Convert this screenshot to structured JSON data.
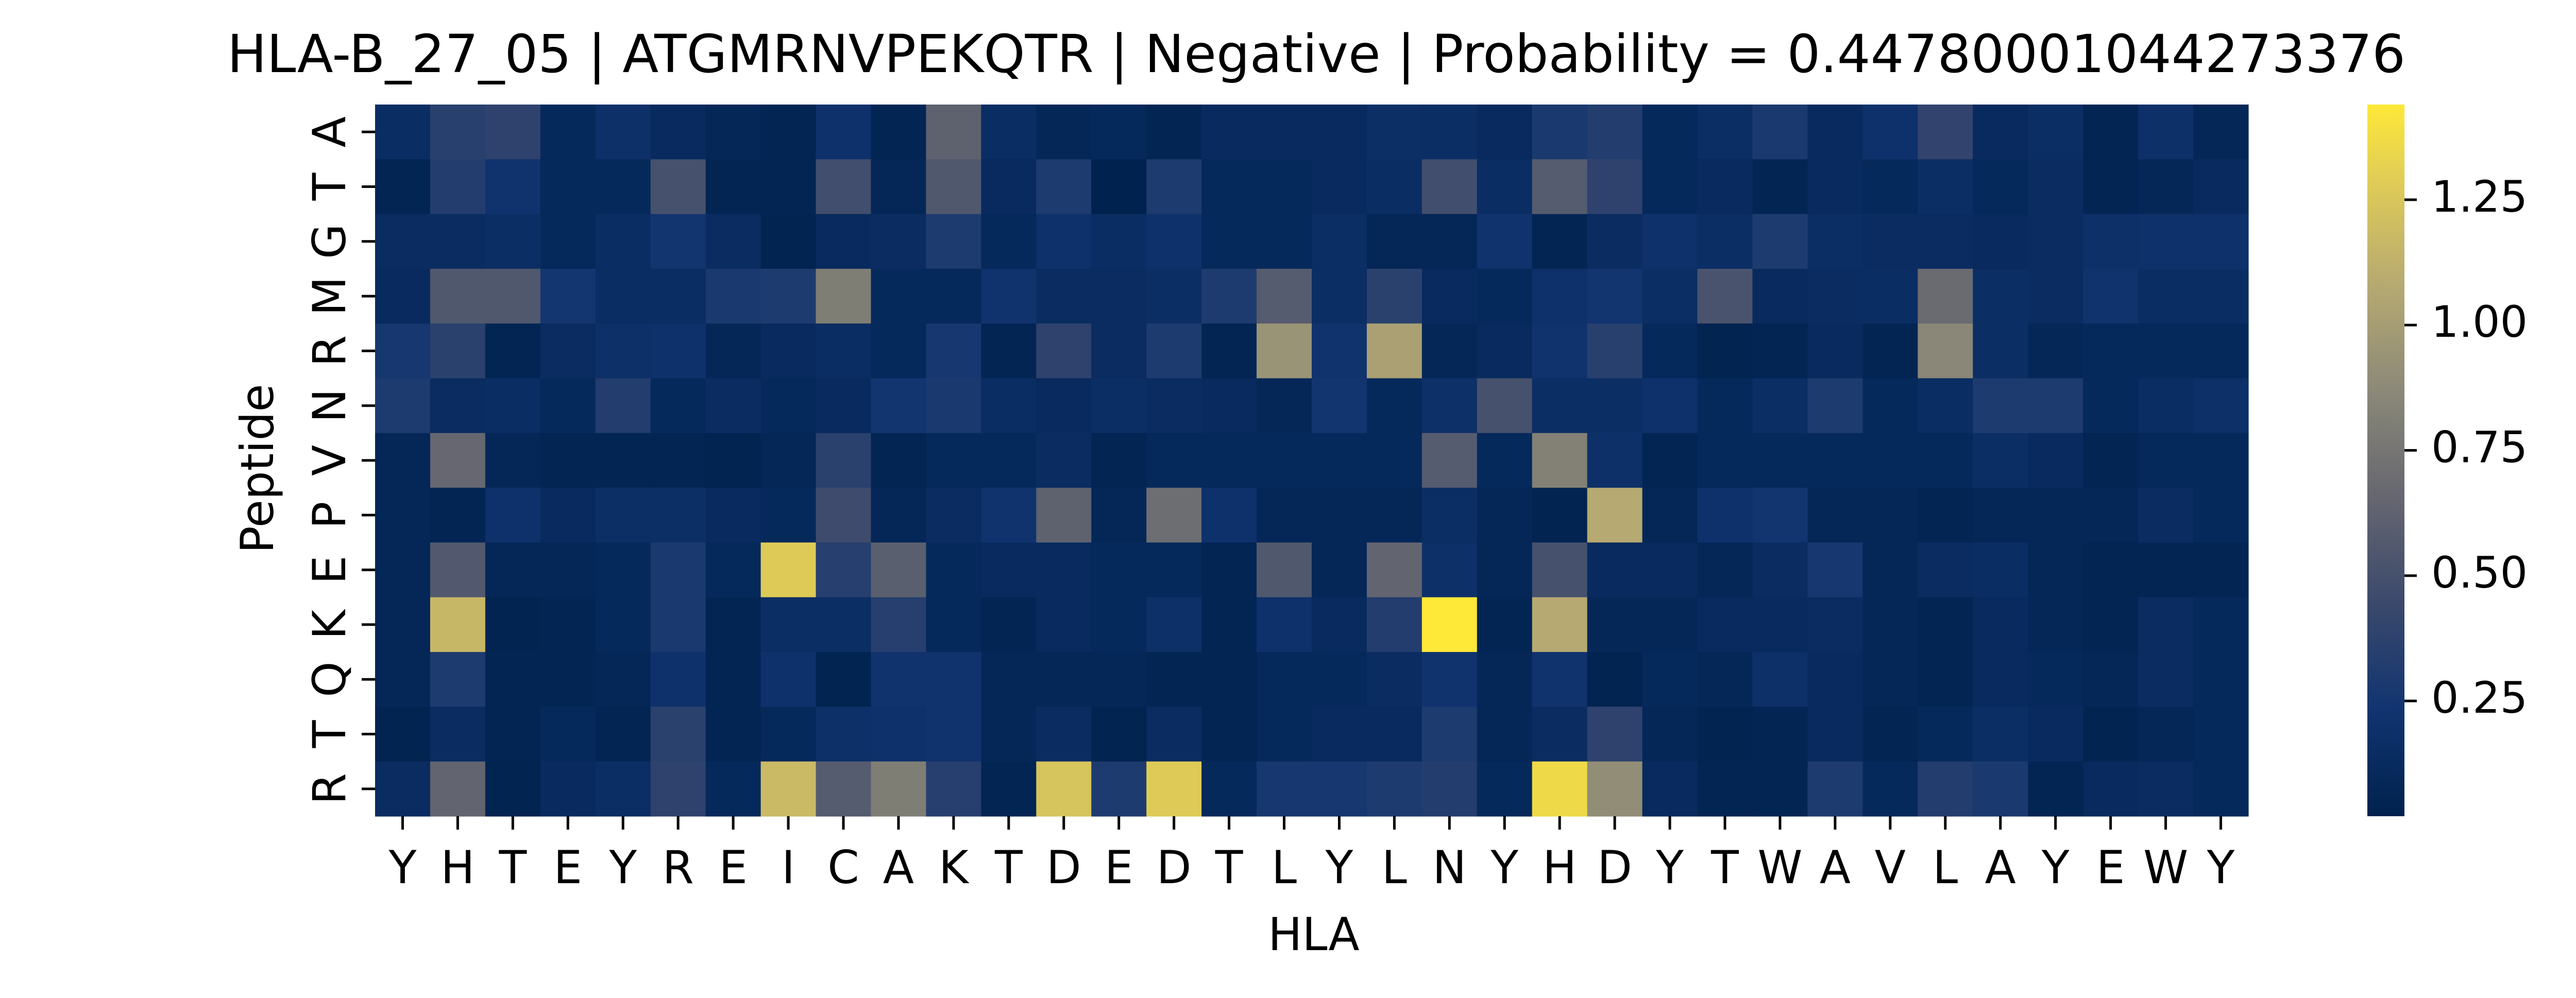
{
  "chart_data": {
    "type": "heatmap",
    "title": "HLA-B_27_05 | ATGMRNVPEKQTR | Negative | Probability = 0.44780001044273376",
    "xlabel": "HLA",
    "ylabel": "Peptide",
    "x_categories": [
      "Y",
      "H",
      "T",
      "E",
      "Y",
      "R",
      "E",
      "I",
      "C",
      "A",
      "K",
      "T",
      "D",
      "E",
      "D",
      "T",
      "L",
      "Y",
      "L",
      "N",
      "Y",
      "H",
      "D",
      "Y",
      "T",
      "W",
      "A",
      "V",
      "L",
      "A",
      "Y",
      "E",
      "W",
      "Y"
    ],
    "y_categories": [
      "A",
      "T",
      "G",
      "M",
      "R",
      "N",
      "V",
      "P",
      "E",
      "K",
      "Q",
      "T",
      "R"
    ],
    "colorbar": {
      "colormap": "cividis",
      "vmin": 0.02,
      "vmax": 1.44,
      "ticks": [
        0.25,
        0.5,
        0.75,
        1.0,
        1.25
      ],
      "tick_labels": [
        "0.25",
        "0.50",
        "0.75",
        "1.00",
        "1.25"
      ]
    },
    "values": [
      [
        0.15,
        0.35,
        0.38,
        0.1,
        0.18,
        0.12,
        0.08,
        0.05,
        0.2,
        0.06,
        0.62,
        0.15,
        0.08,
        0.1,
        0.06,
        0.12,
        0.12,
        0.12,
        0.17,
        0.16,
        0.12,
        0.28,
        0.32,
        0.1,
        0.16,
        0.28,
        0.12,
        0.2,
        0.4,
        0.12,
        0.16,
        0.06,
        0.18,
        0.08
      ],
      [
        0.06,
        0.32,
        0.22,
        0.1,
        0.1,
        0.5,
        0.06,
        0.06,
        0.48,
        0.08,
        0.55,
        0.12,
        0.3,
        0.02,
        0.3,
        0.1,
        0.1,
        0.12,
        0.15,
        0.48,
        0.15,
        0.58,
        0.38,
        0.1,
        0.12,
        0.06,
        0.12,
        0.1,
        0.16,
        0.1,
        0.14,
        0.06,
        0.08,
        0.12
      ],
      [
        0.14,
        0.14,
        0.16,
        0.1,
        0.15,
        0.24,
        0.14,
        0.04,
        0.12,
        0.14,
        0.3,
        0.1,
        0.2,
        0.15,
        0.2,
        0.1,
        0.1,
        0.16,
        0.08,
        0.08,
        0.22,
        0.06,
        0.14,
        0.2,
        0.16,
        0.3,
        0.16,
        0.14,
        0.14,
        0.12,
        0.14,
        0.18,
        0.2,
        0.2
      ],
      [
        0.12,
        0.55,
        0.55,
        0.25,
        0.15,
        0.15,
        0.28,
        0.3,
        0.8,
        0.1,
        0.1,
        0.22,
        0.14,
        0.14,
        0.16,
        0.3,
        0.58,
        0.16,
        0.36,
        0.12,
        0.1,
        0.2,
        0.24,
        0.16,
        0.52,
        0.12,
        0.14,
        0.15,
        0.68,
        0.16,
        0.14,
        0.22,
        0.15,
        0.15
      ],
      [
        0.26,
        0.36,
        0.06,
        0.14,
        0.18,
        0.2,
        0.08,
        0.12,
        0.15,
        0.1,
        0.26,
        0.06,
        0.38,
        0.14,
        0.3,
        0.06,
        0.94,
        0.22,
        1.02,
        0.08,
        0.12,
        0.22,
        0.35,
        0.1,
        0.04,
        0.06,
        0.12,
        0.06,
        0.86,
        0.16,
        0.08,
        0.1,
        0.1,
        0.1
      ],
      [
        0.3,
        0.14,
        0.15,
        0.1,
        0.32,
        0.1,
        0.14,
        0.1,
        0.12,
        0.24,
        0.28,
        0.15,
        0.12,
        0.16,
        0.14,
        0.12,
        0.08,
        0.24,
        0.1,
        0.18,
        0.5,
        0.16,
        0.16,
        0.2,
        0.1,
        0.16,
        0.3,
        0.1,
        0.15,
        0.3,
        0.3,
        0.1,
        0.15,
        0.18
      ],
      [
        0.08,
        0.66,
        0.08,
        0.06,
        0.06,
        0.06,
        0.04,
        0.08,
        0.36,
        0.06,
        0.1,
        0.1,
        0.14,
        0.06,
        0.1,
        0.1,
        0.1,
        0.1,
        0.1,
        0.58,
        0.1,
        0.82,
        0.18,
        0.06,
        0.1,
        0.1,
        0.1,
        0.1,
        0.1,
        0.16,
        0.12,
        0.06,
        0.1,
        0.1
      ],
      [
        0.08,
        0.06,
        0.2,
        0.12,
        0.17,
        0.17,
        0.12,
        0.1,
        0.46,
        0.08,
        0.14,
        0.22,
        0.62,
        0.08,
        0.7,
        0.2,
        0.08,
        0.08,
        0.08,
        0.16,
        0.08,
        0.04,
        1.08,
        0.08,
        0.2,
        0.24,
        0.08,
        0.08,
        0.06,
        0.08,
        0.08,
        0.08,
        0.14,
        0.1
      ],
      [
        0.08,
        0.56,
        0.08,
        0.08,
        0.1,
        0.28,
        0.1,
        1.28,
        0.34,
        0.6,
        0.1,
        0.12,
        0.12,
        0.1,
        0.1,
        0.06,
        0.55,
        0.08,
        0.64,
        0.18,
        0.08,
        0.5,
        0.12,
        0.12,
        0.08,
        0.14,
        0.26,
        0.08,
        0.14,
        0.15,
        0.08,
        0.06,
        0.06,
        0.06
      ],
      [
        0.08,
        1.16,
        0.04,
        0.06,
        0.1,
        0.28,
        0.06,
        0.16,
        0.16,
        0.34,
        0.1,
        0.06,
        0.12,
        0.1,
        0.18,
        0.06,
        0.2,
        0.12,
        0.32,
        1.44,
        0.06,
        1.08,
        0.08,
        0.08,
        0.12,
        0.12,
        0.14,
        0.08,
        0.06,
        0.12,
        0.08,
        0.06,
        0.14,
        0.1
      ],
      [
        0.08,
        0.3,
        0.06,
        0.06,
        0.08,
        0.2,
        0.06,
        0.2,
        0.04,
        0.22,
        0.22,
        0.08,
        0.08,
        0.08,
        0.06,
        0.06,
        0.1,
        0.1,
        0.14,
        0.22,
        0.08,
        0.22,
        0.04,
        0.1,
        0.08,
        0.18,
        0.12,
        0.08,
        0.06,
        0.12,
        0.1,
        0.08,
        0.14,
        0.1
      ],
      [
        0.04,
        0.14,
        0.06,
        0.1,
        0.06,
        0.36,
        0.06,
        0.1,
        0.18,
        0.2,
        0.22,
        0.08,
        0.14,
        0.04,
        0.14,
        0.06,
        0.1,
        0.12,
        0.12,
        0.3,
        0.08,
        0.14,
        0.38,
        0.08,
        0.04,
        0.06,
        0.12,
        0.06,
        0.1,
        0.16,
        0.12,
        0.04,
        0.08,
        0.1
      ],
      [
        0.14,
        0.64,
        0.04,
        0.12,
        0.16,
        0.38,
        0.1,
        1.18,
        0.58,
        0.8,
        0.34,
        0.06,
        1.24,
        0.3,
        1.28,
        0.1,
        0.26,
        0.26,
        0.3,
        0.32,
        0.1,
        1.36,
        0.9,
        0.12,
        0.06,
        0.06,
        0.3,
        0.1,
        0.32,
        0.28,
        0.06,
        0.12,
        0.14,
        0.1
      ]
    ]
  }
}
